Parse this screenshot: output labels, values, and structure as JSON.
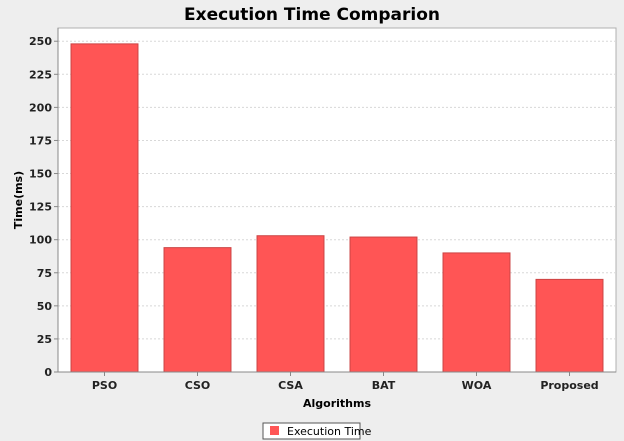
{
  "chart_data": {
    "type": "bar",
    "title": "Execution Time Comparion",
    "xlabel": "Algorithms",
    "ylabel": "Time(ms)",
    "categories": [
      "PSO",
      "CSO",
      "CSA",
      "BAT",
      "WOA",
      "Proposed"
    ],
    "series": [
      {
        "name": "Execution Time",
        "values": [
          248,
          94,
          103,
          102,
          90,
          70
        ]
      }
    ],
    "ylim": [
      0,
      260
    ],
    "yticks": [
      0,
      25,
      50,
      75,
      100,
      125,
      150,
      175,
      200,
      225,
      250
    ],
    "grid": true,
    "legend_position": "bottom",
    "colors": {
      "bar": "#ff5555",
      "bar_stroke": "#cc4444",
      "plot_bg": "#ffffff",
      "page_bg": "#eeeeee",
      "grid": "#d8d8d8"
    }
  }
}
